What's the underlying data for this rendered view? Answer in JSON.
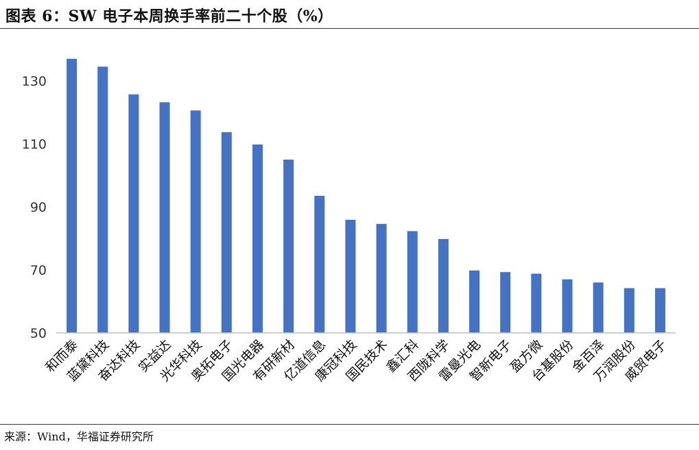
{
  "header": {
    "title": "图表 6：SW 电子本周换手率前二十个股（%）"
  },
  "footer": {
    "source": "来源：Wind，华福证券研究所"
  },
  "colors": {
    "bar": "#4472C4",
    "rule": "#1F3A5F",
    "axis": "#BFBFBF"
  },
  "chart_data": {
    "type": "bar",
    "title": "图表 6：SW 电子本周换手率前二十个股（%）",
    "categories": [
      "和而泰",
      "蓝黛科技",
      "奋达科技",
      "实益达",
      "光华科技",
      "奥拓电子",
      "国光电器",
      "有研新材",
      "亿道信息",
      "康冠科技",
      "国民技术",
      "鑫汇科",
      "西陇科学",
      "雷曼光电",
      "智新电子",
      "盈方微",
      "台基股份",
      "金百泽",
      "万润股份",
      "威贸电子"
    ],
    "values": [
      137.0,
      134.5,
      125.7,
      123.2,
      120.6,
      113.7,
      109.8,
      105.0,
      93.5,
      85.9,
      84.6,
      82.3,
      79.8,
      69.8,
      69.3,
      68.8,
      67.0,
      66.0,
      64.2,
      64.2
    ],
    "yticks": [
      50,
      70,
      90,
      110,
      130
    ],
    "ylim": [
      50,
      140
    ],
    "xlabel": "",
    "ylabel": "",
    "grid": false,
    "legend": "none"
  }
}
